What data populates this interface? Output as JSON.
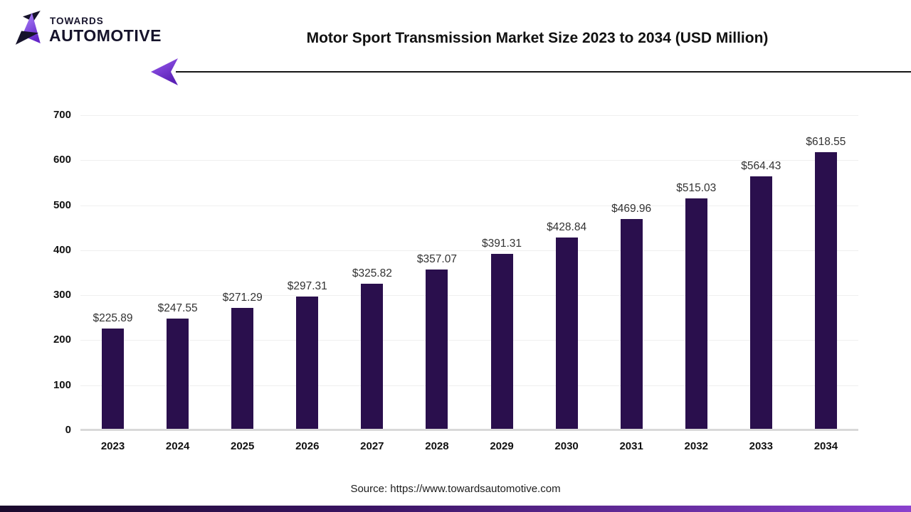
{
  "logo": {
    "line1": "TOWARDS",
    "line2": "AUTOMOTIVE"
  },
  "header": {
    "title": "Motor Sport Transmission Market Size 2023 to 2034 (USD Million)"
  },
  "footer": {
    "source": "Source: https://www.towardsautomotive.com"
  },
  "colors": {
    "bar": "#2a0f4d",
    "gridline": "#efefef",
    "axis_line": "#d9d9d9",
    "accent_purple": "#8a41ce",
    "logo_dark": "#16132b"
  },
  "chart_data": {
    "type": "bar",
    "title": "Motor Sport Transmission Market Size 2023 to 2034 (USD Million)",
    "categories": [
      "2023",
      "2024",
      "2025",
      "2026",
      "2027",
      "2028",
      "2029",
      "2030",
      "2031",
      "2032",
      "2033",
      "2034"
    ],
    "values": [
      225.89,
      247.55,
      271.29,
      297.31,
      325.82,
      357.07,
      391.31,
      428.84,
      469.96,
      515.03,
      564.43,
      618.55
    ],
    "labels": [
      "$225.89",
      "$247.55",
      "$271.29",
      "$297.31",
      "$325.82",
      "$357.07",
      "$391.31",
      "$428.84",
      "$469.96",
      "$515.03",
      "$564.43",
      "$618.55"
    ],
    "xlabel": "",
    "ylabel": "",
    "ylim": [
      0,
      700
    ],
    "y_ticks": [
      0,
      100,
      200,
      300,
      400,
      500,
      600,
      700
    ],
    "grid": true,
    "legend": false,
    "bar_color": "#2a0f4d"
  }
}
